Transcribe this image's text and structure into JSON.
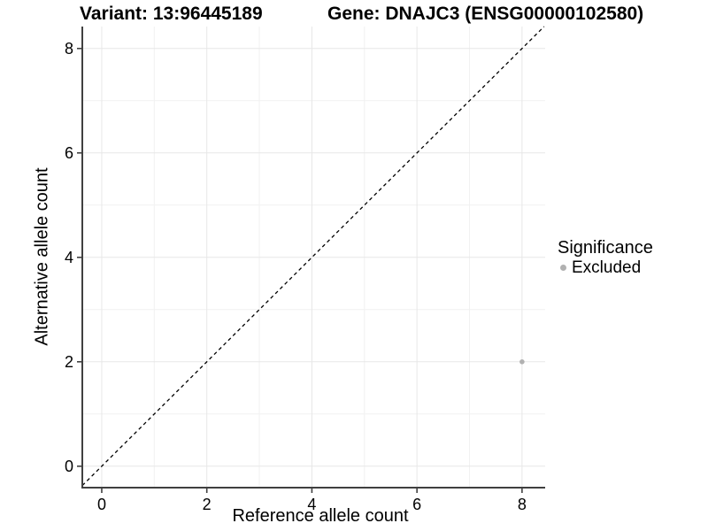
{
  "header": {
    "variant_title": "Variant: 13:96445189",
    "gene_title": "Gene: DNAJC3 (ENSG00000102580)"
  },
  "chart_data": {
    "type": "scatter",
    "title": "Variant: 13:96445189 — Gene: DNAJC3 (ENSG00000102580)",
    "xlabel": "Reference allele count",
    "ylabel": "Alternative allele count",
    "xlim": [
      -0.37,
      8.44
    ],
    "ylim": [
      -0.41,
      8.42
    ],
    "xticks": [
      0,
      2,
      4,
      6,
      8
    ],
    "yticks": [
      0,
      2,
      4,
      6,
      8
    ],
    "xminor": [
      1,
      3,
      5,
      7
    ],
    "yminor": [
      1,
      3,
      5,
      7
    ],
    "grid": true,
    "identity_line": {
      "style": "dashed",
      "slope": 1,
      "intercept": 0,
      "color": "#000000"
    },
    "series": [
      {
        "name": "Excluded",
        "color": "#b1b1b1",
        "points": [
          [
            8,
            2
          ]
        ]
      }
    ],
    "legend": {
      "title": "Significance",
      "position": "right",
      "items": [
        {
          "label": "Excluded",
          "color": "#b1b1b1"
        }
      ]
    }
  },
  "colors": {
    "background": "#ffffff",
    "grid_major": "#e7e7e7",
    "grid_minor": "#f1f1f1",
    "axis_line": "#404040",
    "tick_mark": "#404040",
    "text": "#000000"
  }
}
